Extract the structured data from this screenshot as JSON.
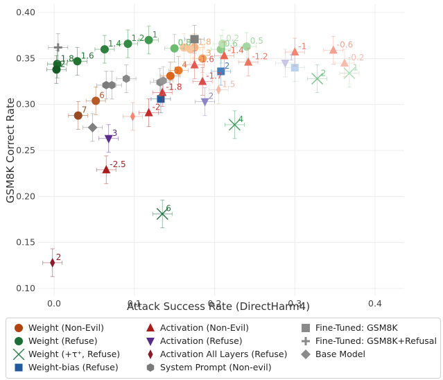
{
  "chart_data": {
    "type": "scatter",
    "xlabel": "Attack Success Rate (DirectHarm4)",
    "ylabel": "GSM8K Correct Rate",
    "xlim": [
      -0.02,
      0.44
    ],
    "ylim": [
      0.1,
      0.41
    ],
    "xticks": [
      "0.0",
      "0.1",
      "0.2",
      "0.3",
      "0.4"
    ],
    "yticks": [
      "0.10",
      "0.15",
      "0.20",
      "0.25",
      "0.30",
      "0.35",
      "0.40"
    ],
    "grid": true,
    "legend_position": "bottom",
    "series": [
      {
        "key": "w_ne",
        "name": "Weight (Non-Evil)",
        "marker": "circle",
        "points": [
          {
            "x": 0.155,
            "y": 0.337,
            "label": "4",
            "color": "#e87a2a"
          },
          {
            "x": 0.145,
            "y": 0.331,
            "label": "5",
            "color": "#d9661f"
          },
          {
            "x": 0.052,
            "y": 0.304,
            "label": "6",
            "color": "#b85a26"
          },
          {
            "x": 0.03,
            "y": 0.288,
            "label": "7",
            "color": "#9a4a23"
          },
          {
            "x": 0.175,
            "y": 0.362,
            "label": "1.8",
            "color": "#f6b37f"
          },
          {
            "x": 0.162,
            "y": 0.362,
            "label": "",
            "color": "#f9c79d"
          },
          {
            "x": 0.17,
            "y": 0.36,
            "label": "",
            "color": "#f9c59a"
          },
          {
            "x": 0.185,
            "y": 0.35,
            "label": "3",
            "color": "#f4a260"
          }
        ]
      },
      {
        "key": "w_r",
        "name": "Weight (Refuse)",
        "marker": "circle",
        "points": [
          {
            "x": 0.118,
            "y": 0.37,
            "label": "1",
            "color": "#3f9a4d"
          },
          {
            "x": 0.092,
            "y": 0.366,
            "label": "1.2",
            "color": "#338a43"
          },
          {
            "x": 0.063,
            "y": 0.36,
            "label": "1.4",
            "color": "#2c7f3c"
          },
          {
            "x": 0.029,
            "y": 0.347,
            "label": "1.6",
            "color": "#237332"
          },
          {
            "x": 0.004,
            "y": 0.344,
            "label": "1.8",
            "color": "#1b6a2c"
          },
          {
            "x": 0.003,
            "y": 0.338,
            "label": "2",
            "color": "#155a25"
          },
          {
            "x": 0.15,
            "y": 0.361,
            "label": "0.8",
            "color": "#6dbb6f"
          },
          {
            "x": 0.208,
            "y": 0.36,
            "label": "0.6",
            "color": "#8fcf8c"
          },
          {
            "x": 0.24,
            "y": 0.363,
            "label": "0.5",
            "color": "#a3d9a0"
          },
          {
            "x": 0.21,
            "y": 0.366,
            "label": "0.2",
            "color": "#b8e2b3"
          }
        ]
      },
      {
        "key": "w_tau",
        "name": "Weight (+τ⁺, Refuse)",
        "marker": "x",
        "points": [
          {
            "x": 0.135,
            "y": 0.181,
            "label": "6",
            "color": "#1f6e3d"
          },
          {
            "x": 0.225,
            "y": 0.278,
            "label": "4",
            "color": "#3e9a5a"
          },
          {
            "x": 0.328,
            "y": 0.328,
            "label": "2",
            "color": "#77c48a"
          },
          {
            "x": 0.368,
            "y": 0.334,
            "label": "1",
            "color": "#a9dbb4"
          }
        ]
      },
      {
        "key": "wb_r",
        "name": "Weight-bias (Refuse)",
        "marker": "square-small",
        "points": [
          {
            "x": 0.133,
            "y": 0.306,
            "label": "",
            "color": "#1f5a9c"
          },
          {
            "x": 0.208,
            "y": 0.336,
            "label": "2",
            "color": "#3f7fc0"
          },
          {
            "x": 0.3,
            "y": 0.34,
            "label": "",
            "color": "#b9d3ee"
          }
        ]
      },
      {
        "key": "a_ne",
        "name": "Activation (Non-Evil)",
        "marker": "triangle-up",
        "points": [
          {
            "x": 0.065,
            "y": 0.229,
            "label": "-2.5",
            "color": "#a81d1d"
          },
          {
            "x": 0.118,
            "y": 0.291,
            "label": "-2",
            "color": "#c42a2a"
          },
          {
            "x": 0.135,
            "y": 0.313,
            "label": "-1.8",
            "color": "#d33838"
          },
          {
            "x": 0.185,
            "y": 0.325,
            "label": "-1.7",
            "color": "#dd4a4a"
          },
          {
            "x": 0.175,
            "y": 0.343,
            "label": "-1.6",
            "color": "#e25a52"
          },
          {
            "x": 0.212,
            "y": 0.353,
            "label": "-1.4",
            "color": "#e8644f"
          },
          {
            "x": 0.242,
            "y": 0.346,
            "label": "-1.2",
            "color": "#eb7362"
          },
          {
            "x": 0.3,
            "y": 0.357,
            "label": "-1",
            "color": "#f08673"
          },
          {
            "x": 0.348,
            "y": 0.359,
            "label": "-0.6",
            "color": "#f4a090"
          },
          {
            "x": 0.362,
            "y": 0.345,
            "label": "-0.2",
            "color": "#f8bcae"
          }
        ]
      },
      {
        "key": "a_r",
        "name": "Activation (Refuse)",
        "marker": "triangle-down",
        "points": [
          {
            "x": 0.068,
            "y": 0.263,
            "label": "3",
            "color": "#5a2a8c"
          },
          {
            "x": 0.188,
            "y": 0.303,
            "label": "2",
            "color": "#8c84c6"
          },
          {
            "x": 0.288,
            "y": 0.345,
            "label": "1",
            "color": "#c8c6e6"
          }
        ]
      },
      {
        "key": "a_all",
        "name": "Activation All Layers (Refuse)",
        "marker": "diamond-thin",
        "points": [
          {
            "x": -0.002,
            "y": 0.128,
            "label": "2",
            "color": "#8b1a2b"
          }
        ]
      },
      {
        "key": "sp",
        "name": "System Prompt (Non-evil)",
        "marker": "hexagon",
        "points": [
          {
            "x": 0.065,
            "y": 0.321,
            "label": "",
            "color": "#7a7a7a"
          },
          {
            "x": 0.072,
            "y": 0.321,
            "label": "",
            "color": "#808080"
          },
          {
            "x": 0.09,
            "y": 0.328,
            "label": "",
            "color": "#888888"
          },
          {
            "x": 0.132,
            "y": 0.324,
            "label": "",
            "color": "#8a8a8a"
          },
          {
            "x": 0.136,
            "y": 0.326,
            "label": "",
            "color": "#959595"
          }
        ]
      },
      {
        "key": "ft",
        "name": "Fine-Tuned: GSM8K",
        "marker": "square",
        "points": [
          {
            "x": 0.175,
            "y": 0.371,
            "label": "",
            "color": "#7f7f7f"
          }
        ]
      },
      {
        "key": "ftr",
        "name": "Fine-Tuned: GSM8K+Refusal",
        "marker": "plus",
        "points": [
          {
            "x": 0.005,
            "y": 0.362,
            "label": "",
            "color": "#7f7f7f"
          }
        ]
      },
      {
        "key": "base",
        "name": "Base Model",
        "marker": "diamond",
        "points": [
          {
            "x": 0.048,
            "y": 0.275,
            "label": "",
            "color": "#7f7f7f"
          }
        ]
      },
      {
        "key": "extra_pink",
        "name": "",
        "marker": "diamond-thin",
        "points": [
          {
            "x": 0.098,
            "y": 0.287,
            "label": "",
            "color": "#f08673"
          },
          {
            "x": 0.205,
            "y": 0.316,
            "label": "1.5",
            "color": "#f6b8a6"
          }
        ]
      }
    ]
  },
  "legend": {
    "columns": [
      [
        "Weight (Non-Evil)",
        "Weight (Refuse)",
        "Weight (+τ⁺, Refuse)",
        "Weight-bias (Refuse)"
      ],
      [
        "Activation (Non-Evil)",
        "Activation (Refuse)",
        "Activation All Layers (Refuse)",
        "System Prompt (Non-evil)"
      ],
      [
        "Fine-Tuned: GSM8K",
        "Fine-Tuned: GSM8K+Refusal",
        "Base Model"
      ]
    ],
    "colors": {
      "w_ne": "#b1440e",
      "w_r": "#1a6e33",
      "w_tau": "#2e7d4f",
      "wb_r": "#1f5a9c",
      "a_ne": "#a81d1d",
      "a_r": "#5a2a8c",
      "a_all": "#8b1a2b",
      "sp": "#7a7a7a",
      "ft": "#8a8a8a",
      "ftr": "#8a8a8a",
      "base": "#8a8a8a"
    }
  }
}
